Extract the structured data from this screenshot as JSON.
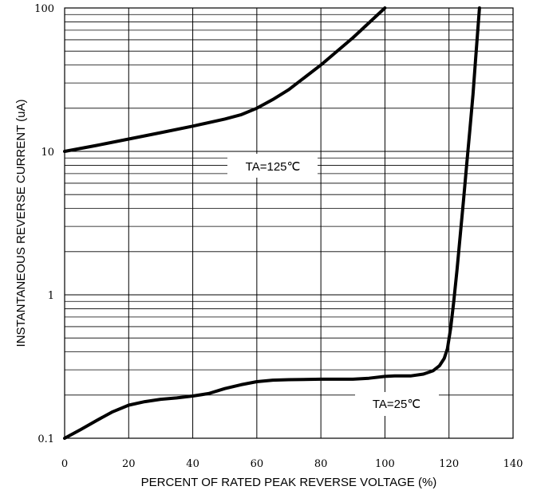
{
  "chart_data": {
    "type": "line",
    "xlabel": "PERCENT OF RATED PEAK REVERSE VOLTAGE (%)",
    "ylabel": "INSTANTANEOUS REVERSE CURRENT (uA)",
    "xlim": [
      0,
      140
    ],
    "ylim": [
      0.1,
      100
    ],
    "yscale": "log",
    "grid": true,
    "x_ticks": [
      {
        "value": 0,
        "label": "0"
      },
      {
        "value": 20,
        "label": "20"
      },
      {
        "value": 40,
        "label": "40"
      },
      {
        "value": 60,
        "label": "60"
      },
      {
        "value": 80,
        "label": "80"
      },
      {
        "value": 100,
        "label": "100"
      },
      {
        "value": 120,
        "label": "120"
      },
      {
        "value": 140,
        "label": "140"
      }
    ],
    "y_ticks": [
      {
        "value": 0.1,
        "label": "0.1"
      },
      {
        "value": 1,
        "label": "1"
      },
      {
        "value": 10,
        "label": "10"
      },
      {
        "value": 100,
        "label": "100"
      }
    ],
    "series": [
      {
        "name": "TA=125℃",
        "x": [
          0,
          10,
          20,
          30,
          40,
          50,
          55,
          60,
          65,
          70,
          80,
          90,
          100
        ],
        "y": [
          10,
          11,
          12.2,
          13.5,
          15,
          16.8,
          18,
          20,
          23,
          27,
          40,
          62,
          100
        ]
      },
      {
        "name": "TA=25℃",
        "x": [
          0,
          5,
          10,
          15,
          20,
          25,
          30,
          35,
          40,
          45,
          50,
          55,
          60,
          65,
          70,
          80,
          90,
          95,
          100,
          103,
          108,
          112,
          115,
          117,
          118.5,
          119.5,
          120.5,
          121.5,
          122.5,
          123.5,
          124.5,
          125.5,
          126.5,
          127.5,
          128.5,
          129.5
        ],
        "y": [
          0.1,
          0.115,
          0.133,
          0.153,
          0.17,
          0.18,
          0.187,
          0.191,
          0.197,
          0.205,
          0.222,
          0.236,
          0.248,
          0.254,
          0.256,
          0.258,
          0.258,
          0.262,
          0.27,
          0.272,
          0.272,
          0.28,
          0.295,
          0.32,
          0.36,
          0.42,
          0.58,
          0.9,
          1.5,
          2.6,
          4.5,
          8,
          14,
          25,
          50,
          100
        ]
      }
    ],
    "annotations": [
      {
        "text": "TA=125℃",
        "x": 0.95
      },
      {
        "text": "TA=25℃"
      }
    ]
  }
}
